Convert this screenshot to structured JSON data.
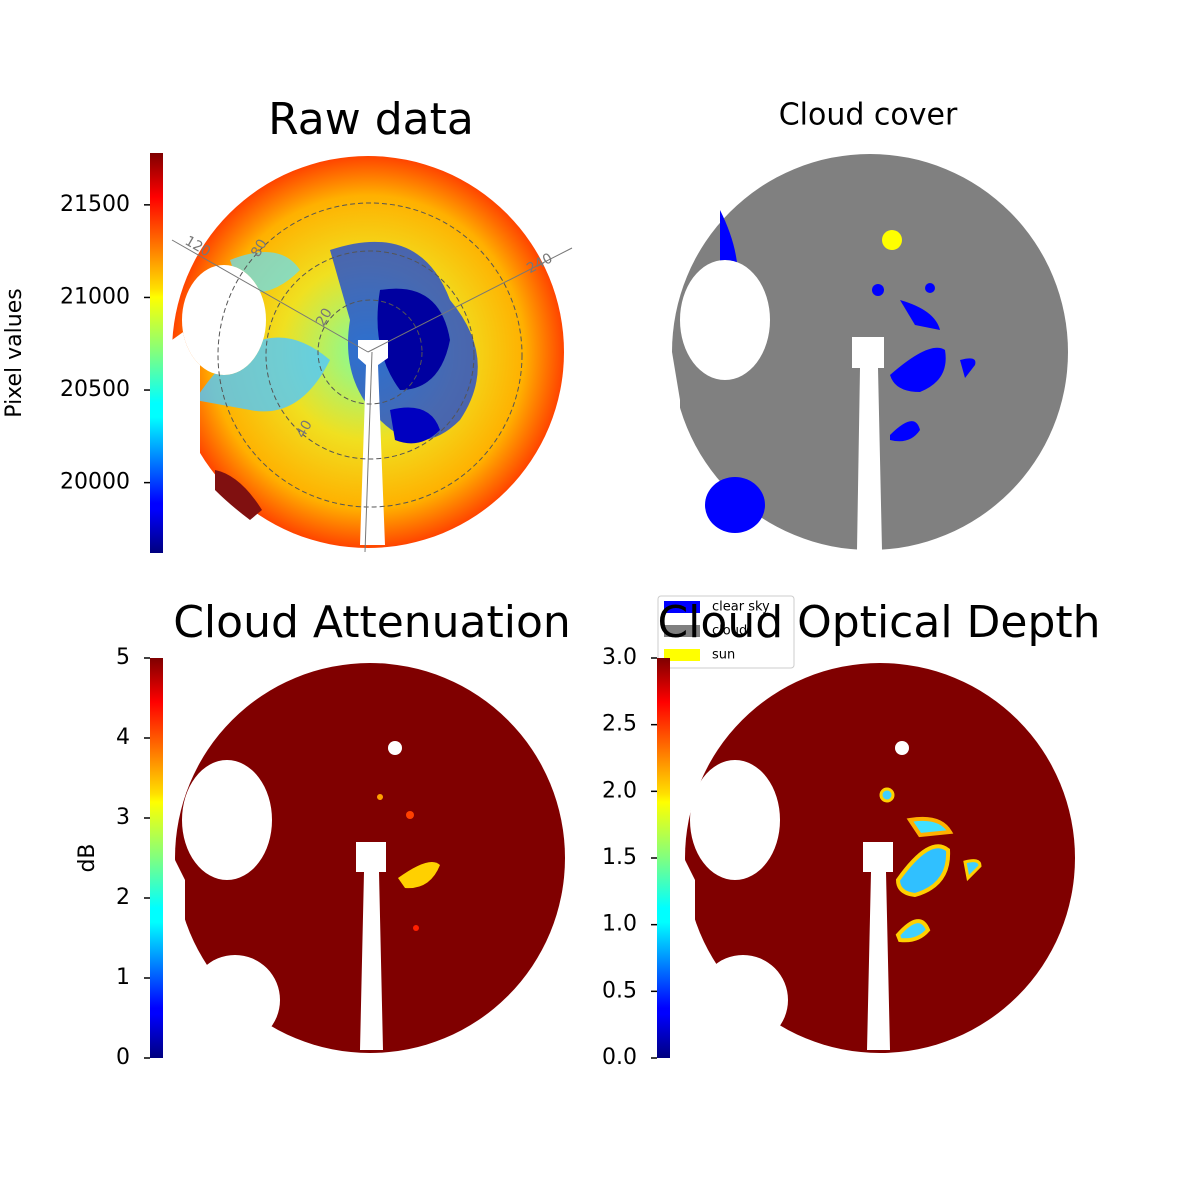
{
  "chart_data": [
    {
      "type": "image",
      "title": "Raw data",
      "polar_labels": [
        "120",
        "80",
        "240",
        "20",
        "40"
      ],
      "colorbar": {
        "label": "Pixel values",
        "colormap": "jet",
        "lim": [
          19620,
          21780
        ],
        "ticks": [
          20000,
          20500,
          21000,
          21500
        ]
      }
    },
    {
      "type": "image",
      "title": "Cloud cover",
      "legend": [
        {
          "name": "clear sky",
          "color": "#0000ff"
        },
        {
          "name": "cloud",
          "color": "#808080"
        },
        {
          "name": "sun",
          "color": "#ffff00"
        }
      ]
    },
    {
      "type": "image",
      "title": "Cloud Attenuation",
      "colorbar": {
        "label": "dB",
        "colormap": "jet",
        "lim": [
          0,
          5
        ],
        "ticks": [
          0,
          1,
          2,
          3,
          4,
          5
        ]
      }
    },
    {
      "type": "image",
      "title": "Cloud Optical Depth",
      "colorbar": {
        "colormap": "jet",
        "lim": [
          0,
          3
        ],
        "ticks": [
          {
            "value": 0,
            "label": "0.0"
          },
          0.5,
          {
            "value": 1,
            "label": "1.0"
          },
          1.5,
          {
            "value": 2,
            "label": "2.0"
          },
          2.5,
          {
            "value": 3,
            "label": "3.0"
          }
        ]
      }
    }
  ]
}
